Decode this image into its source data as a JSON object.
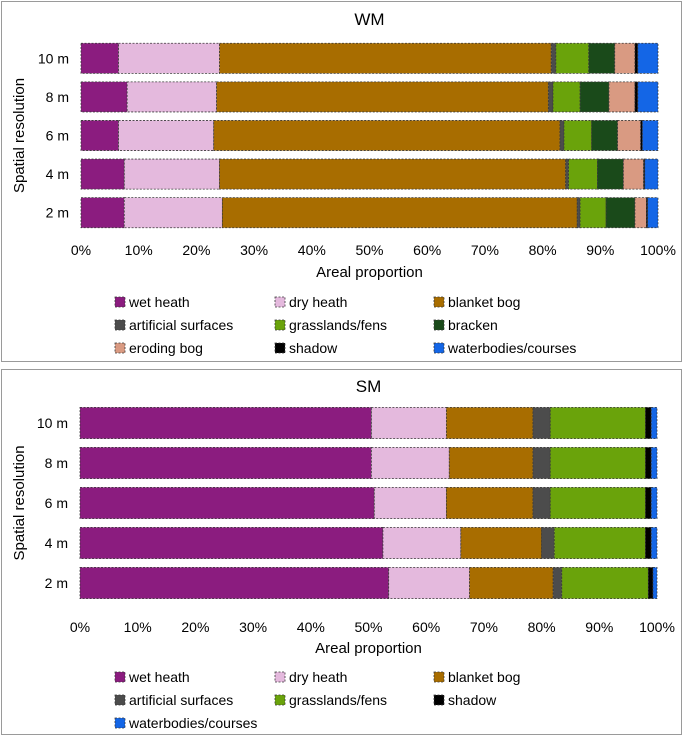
{
  "chart_data": [
    {
      "type": "bar",
      "orientation": "horizontal",
      "stacked": true,
      "title": "WM",
      "xlabel": "Areal proportion",
      "ylabel": "Spatial resolution",
      "xlim": [
        0,
        100
      ],
      "x_ticks": [
        "0%",
        "10%",
        "20%",
        "30%",
        "40%",
        "50%",
        "60%",
        "70%",
        "80%",
        "90%",
        "100%"
      ],
      "categories": [
        "10 m",
        "8 m",
        "6 m",
        "4 m",
        "2 m"
      ],
      "legend_columns": 3,
      "series": [
        {
          "name": "wet heath",
          "color": "#8b1c7f",
          "values": [
            6.5,
            8.0,
            6.5,
            7.5,
            7.5
          ]
        },
        {
          "name": "dry heath",
          "color": "#e4b9dd",
          "values": [
            17.5,
            15.5,
            16.5,
            16.5,
            17.0
          ]
        },
        {
          "name": "blanket bog",
          "color": "#a86d00",
          "values": [
            57.5,
            57.5,
            60.0,
            60.0,
            61.5
          ]
        },
        {
          "name": "artificial surfaces",
          "color": "#4c4c4c",
          "values": [
            0.8,
            0.8,
            0.7,
            0.5,
            0.5
          ]
        },
        {
          "name": "grasslands/fens",
          "color": "#6aa30b",
          "values": [
            5.7,
            4.7,
            4.8,
            5.0,
            4.5
          ]
        },
        {
          "name": "bracken",
          "color": "#1a4a1a",
          "values": [
            4.5,
            5.0,
            4.5,
            4.5,
            5.0
          ]
        },
        {
          "name": "eroding bog",
          "color": "#d99a82",
          "values": [
            3.5,
            4.5,
            4.0,
            3.5,
            2.0
          ]
        },
        {
          "name": "shadow",
          "color": "#000000",
          "values": [
            0.5,
            0.5,
            0.3,
            0.2,
            0.2
          ]
        },
        {
          "name": "waterbodies/courses",
          "color": "#1466e6",
          "values": [
            3.5,
            3.5,
            2.7,
            2.3,
            1.8
          ]
        }
      ]
    },
    {
      "type": "bar",
      "orientation": "horizontal",
      "stacked": true,
      "title": "SM",
      "xlabel": "Areal proportion",
      "ylabel": "Spatial resolution",
      "xlim": [
        0,
        100
      ],
      "x_ticks": [
        "0%",
        "10%",
        "20%",
        "30%",
        "40%",
        "50%",
        "60%",
        "70%",
        "80%",
        "90%",
        "100%"
      ],
      "categories": [
        "10 m",
        "8 m",
        "6 m",
        "4 m",
        "2 m"
      ],
      "legend_columns": 3,
      "series": [
        {
          "name": "wet heath",
          "color": "#8b1c7f",
          "values": [
            50.5,
            50.5,
            51.0,
            52.5,
            53.5
          ]
        },
        {
          "name": "dry heath",
          "color": "#e4b9dd",
          "values": [
            13.0,
            13.5,
            12.5,
            13.5,
            14.0
          ]
        },
        {
          "name": "blanket bog",
          "color": "#a86d00",
          "values": [
            15.0,
            14.5,
            15.0,
            14.0,
            14.5
          ]
        },
        {
          "name": "artificial surfaces",
          "color": "#4c4c4c",
          "values": [
            3.0,
            3.0,
            3.0,
            2.2,
            1.5
          ]
        },
        {
          "name": "grasslands/fens",
          "color": "#6aa30b",
          "values": [
            16.5,
            16.5,
            16.5,
            15.8,
            15.0
          ]
        },
        {
          "name": "shadow",
          "color": "#000000",
          "values": [
            1.0,
            1.0,
            1.0,
            1.0,
            0.8
          ]
        },
        {
          "name": "waterbodies/courses",
          "color": "#1466e6",
          "values": [
            1.0,
            1.0,
            1.0,
            1.0,
            0.7
          ]
        }
      ]
    }
  ]
}
